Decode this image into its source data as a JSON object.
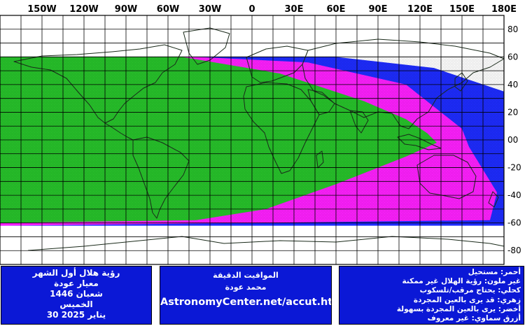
{
  "map": {
    "lon_labels": [
      "150W",
      "120W",
      "90W",
      "60W",
      "30W",
      "0",
      "30E",
      "60E",
      "90E",
      "120E",
      "150E",
      "180E"
    ],
    "lat_labels": [
      "80",
      "60",
      "40",
      "20",
      "00",
      "-20",
      "-40",
      "-60",
      "-80"
    ],
    "lon_range": [
      -180,
      180
    ],
    "lat_range": [
      -90,
      90
    ],
    "legend_colors": {
      "green": "#27c22b",
      "magenta": "#ff20ff",
      "blue": "#1e2cff",
      "panel": "#0b18d6"
    },
    "visibility_bands": [
      {
        "color": "green",
        "meaning_index": 4,
        "lat_extent": [
          -60,
          60
        ],
        "eastern_tip_lon": 132
      },
      {
        "color": "magenta",
        "meaning_index": 3,
        "lat_extent": [
          -62,
          60
        ],
        "eastern_tip_lon": 155
      },
      {
        "color": "blue",
        "meaning_index": 5,
        "lat_extent": [
          -62,
          60
        ],
        "eastern_tip_lon": 180
      }
    ]
  },
  "panels": {
    "left": {
      "line1": "رؤية هلال أول الشهر",
      "line2": "معيار عودة",
      "line3": "شعبان 1446",
      "line4": "الخميس",
      "line5": "30 يناير 2025"
    },
    "middle": {
      "line1": "المواقيت الدقيقة",
      "line2": "محمد عودة",
      "url": "AstronomyCenter.net/accut.html"
    },
    "right": {
      "line1": "أحمر: مستحيل",
      "line2": "غير ملون: رؤية الهلال غير ممكنة",
      "line3": "كحلي: يحتاج مرقب/تلسكوب",
      "line4": "زهري: قد يرى بالعين المجردة",
      "line5": "أخضر: يرى بالعين المجردة بسهولة",
      "line6": "أزرق سماوي: غير معروف"
    }
  }
}
